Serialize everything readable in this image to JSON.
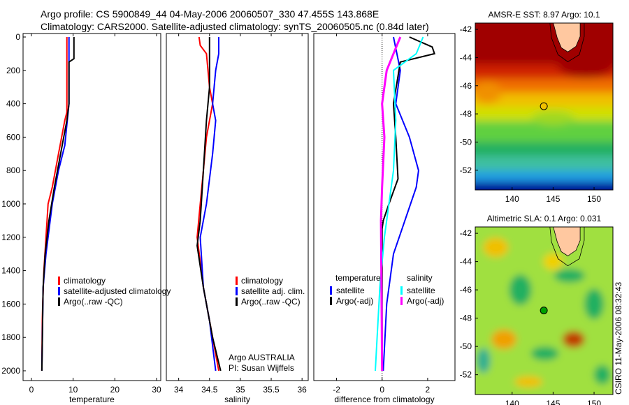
{
  "title_line1": "Argo profile: CS 5900849_44 04-May-2006 20060507_330 47.455S 143.868E",
  "title_line2": "Climatology: CARS2000. Satellite-adjusted climatology: synTS_20060505.nc (0.84d later)",
  "colors": {
    "red": "#ff0000",
    "blue": "#0000ff",
    "black": "#000000",
    "cyan": "#00ffff",
    "magenta": "#ff00ff"
  },
  "chart_data": [
    {
      "type": "line",
      "xlabel": "temperature",
      "ylabel": "",
      "xlim": [
        -2,
        31
      ],
      "ylim": [
        2060,
        0
      ],
      "xticks": [
        0,
        10,
        20,
        30
      ],
      "yticks": [
        0,
        200,
        400,
        600,
        800,
        1000,
        1200,
        1400,
        1600,
        1800,
        2000
      ],
      "legend": [
        "climatology",
        "satellite-adjusted climatology",
        "Argo(..raw -QC)"
      ],
      "series": [
        {
          "name": "climatology",
          "color": "red",
          "depth": [
            0,
            450,
            500,
            700,
            900,
            1000,
            1200,
            1400,
            1600,
            1700,
            2000
          ],
          "values": [
            8.5,
            8.5,
            8,
            6.5,
            5,
            4,
            3.5,
            3,
            2.7,
            2.6,
            2.5
          ]
        },
        {
          "name": "satellite-adjusted climatology",
          "color": "blue",
          "depth": [
            0,
            400,
            500,
            650,
            800,
            1000,
            1200,
            1300,
            1500,
            2000
          ],
          "values": [
            9,
            9,
            8.6,
            8,
            6.5,
            5,
            4,
            3.5,
            2.8,
            2.5
          ]
        },
        {
          "name": "Argo(..raw -QC)",
          "color": "black",
          "depth": [
            0,
            130,
            150,
            400,
            500,
            700,
            900,
            1100,
            1300,
            1500,
            2000
          ],
          "values": [
            10.2,
            10.2,
            9,
            9,
            8.5,
            7,
            5.5,
            4.2,
            3.3,
            2.8,
            2.5
          ]
        }
      ]
    },
    {
      "type": "line",
      "xlabel": "salinity",
      "ylabel": "",
      "xlim": [
        33.8,
        36.1
      ],
      "ylim": [
        2060,
        0
      ],
      "xticks": [
        34,
        34.5,
        35,
        35.5,
        36
      ],
      "yticks": [],
      "legend": [
        "climatology",
        "satellite adj. clim.",
        "Argo(..raw -QC)"
      ],
      "annotation": [
        "Argo AUSTRALIA",
        "PI: Susan Wijffels"
      ],
      "series": [
        {
          "name": "climatology",
          "color": "red",
          "depth": [
            0,
            50,
            100,
            300,
            400,
            600,
            800,
            1000,
            1200,
            1500,
            1700,
            2000
          ],
          "values": [
            34.33,
            34.35,
            34.45,
            34.5,
            34.55,
            34.45,
            34.4,
            34.35,
            34.3,
            34.4,
            34.5,
            34.65
          ]
        },
        {
          "name": "satellite adj. clim.",
          "color": "blue",
          "depth": [
            0,
            100,
            200,
            400,
            500,
            700,
            1000,
            1200,
            1500,
            1700,
            2000
          ],
          "values": [
            34.65,
            34.65,
            34.6,
            34.55,
            34.6,
            34.55,
            34.45,
            34.35,
            34.4,
            34.5,
            34.6
          ]
        },
        {
          "name": "Argo(..raw -QC)",
          "color": "black",
          "depth": [
            0,
            100,
            300,
            500,
            800,
            1100,
            1250,
            1500,
            1800,
            2000
          ],
          "values": [
            34.5,
            34.5,
            34.5,
            34.45,
            34.4,
            34.35,
            34.3,
            34.4,
            34.55,
            34.68
          ]
        }
      ]
    },
    {
      "type": "line",
      "xlabel": "difference from climatology",
      "ylabel": "",
      "xlim": [
        -3,
        3.2
      ],
      "ylim": [
        2060,
        0
      ],
      "xticks": [
        -2,
        0,
        2
      ],
      "yticks": [],
      "legend": {
        "temperature": [
          "satellite",
          "Argo(-adj)"
        ],
        "salinity": [
          "satellite",
          "Argo(-adj)"
        ]
      },
      "legend_headers": [
        "temperature",
        "salinity"
      ],
      "series": [
        {
          "name": "temperature satellite",
          "color": "blue",
          "depth": [
            0,
            200,
            400,
            600,
            800,
            900,
            1100,
            1300,
            1600,
            2000
          ],
          "values": [
            0.5,
            0.8,
            0.6,
            1.2,
            1.6,
            1.5,
            1.0,
            0.5,
            0.2,
            0.05
          ]
        },
        {
          "name": "temperature Argo(-adj)",
          "color": "black",
          "depth": [
            0,
            60,
            100,
            150,
            400,
            600,
            850,
            1000,
            1100,
            1150,
            2000
          ],
          "values": [
            1.2,
            2.2,
            2.3,
            0.8,
            0.5,
            0.6,
            0.7,
            0.3,
            0.05,
            0,
            0
          ]
        },
        {
          "name": "salinity satellite",
          "color": "cyan",
          "depth": [
            0,
            100,
            200,
            500,
            800,
            1000,
            1200,
            1500,
            2000
          ],
          "values": [
            1.8,
            1.5,
            0.5,
            0.6,
            0.5,
            0.3,
            0.1,
            -0.1,
            -0.3
          ]
        },
        {
          "name": "salinity Argo(-adj)",
          "color": "magenta",
          "depth": [
            0,
            100,
            200,
            400,
            600,
            900,
            1100,
            2000
          ],
          "values": [
            0.8,
            0.5,
            0.2,
            0,
            0.1,
            0,
            -0.05,
            0
          ]
        }
      ]
    },
    {
      "type": "heatmap",
      "title": "AMSR-E SST: 8.97  Argo: 10.1",
      "xticks": [
        140,
        145,
        150
      ],
      "yticks": [
        -42,
        -44,
        -46,
        -48,
        -50,
        -52
      ],
      "xlim": [
        135.5,
        152.3
      ],
      "ylim": [
        -53.4,
        -41.55
      ],
      "marker": {
        "lon": 143.868,
        "lat": -47.455,
        "color": "#f0c000"
      }
    },
    {
      "type": "heatmap",
      "title": "Altimetric SLA: 0.1  Argo: 0.031",
      "xticks": [
        140,
        145,
        150
      ],
      "yticks": [
        -42,
        -44,
        -46,
        -48,
        -50,
        -52
      ],
      "xlim": [
        135.5,
        152.3
      ],
      "ylim": [
        -53.4,
        -41.55
      ],
      "marker": {
        "lon": 143.868,
        "lat": -47.455,
        "color": "#00a000"
      }
    }
  ],
  "side_label": "CSIRO 11-May-2006 08:32:43"
}
